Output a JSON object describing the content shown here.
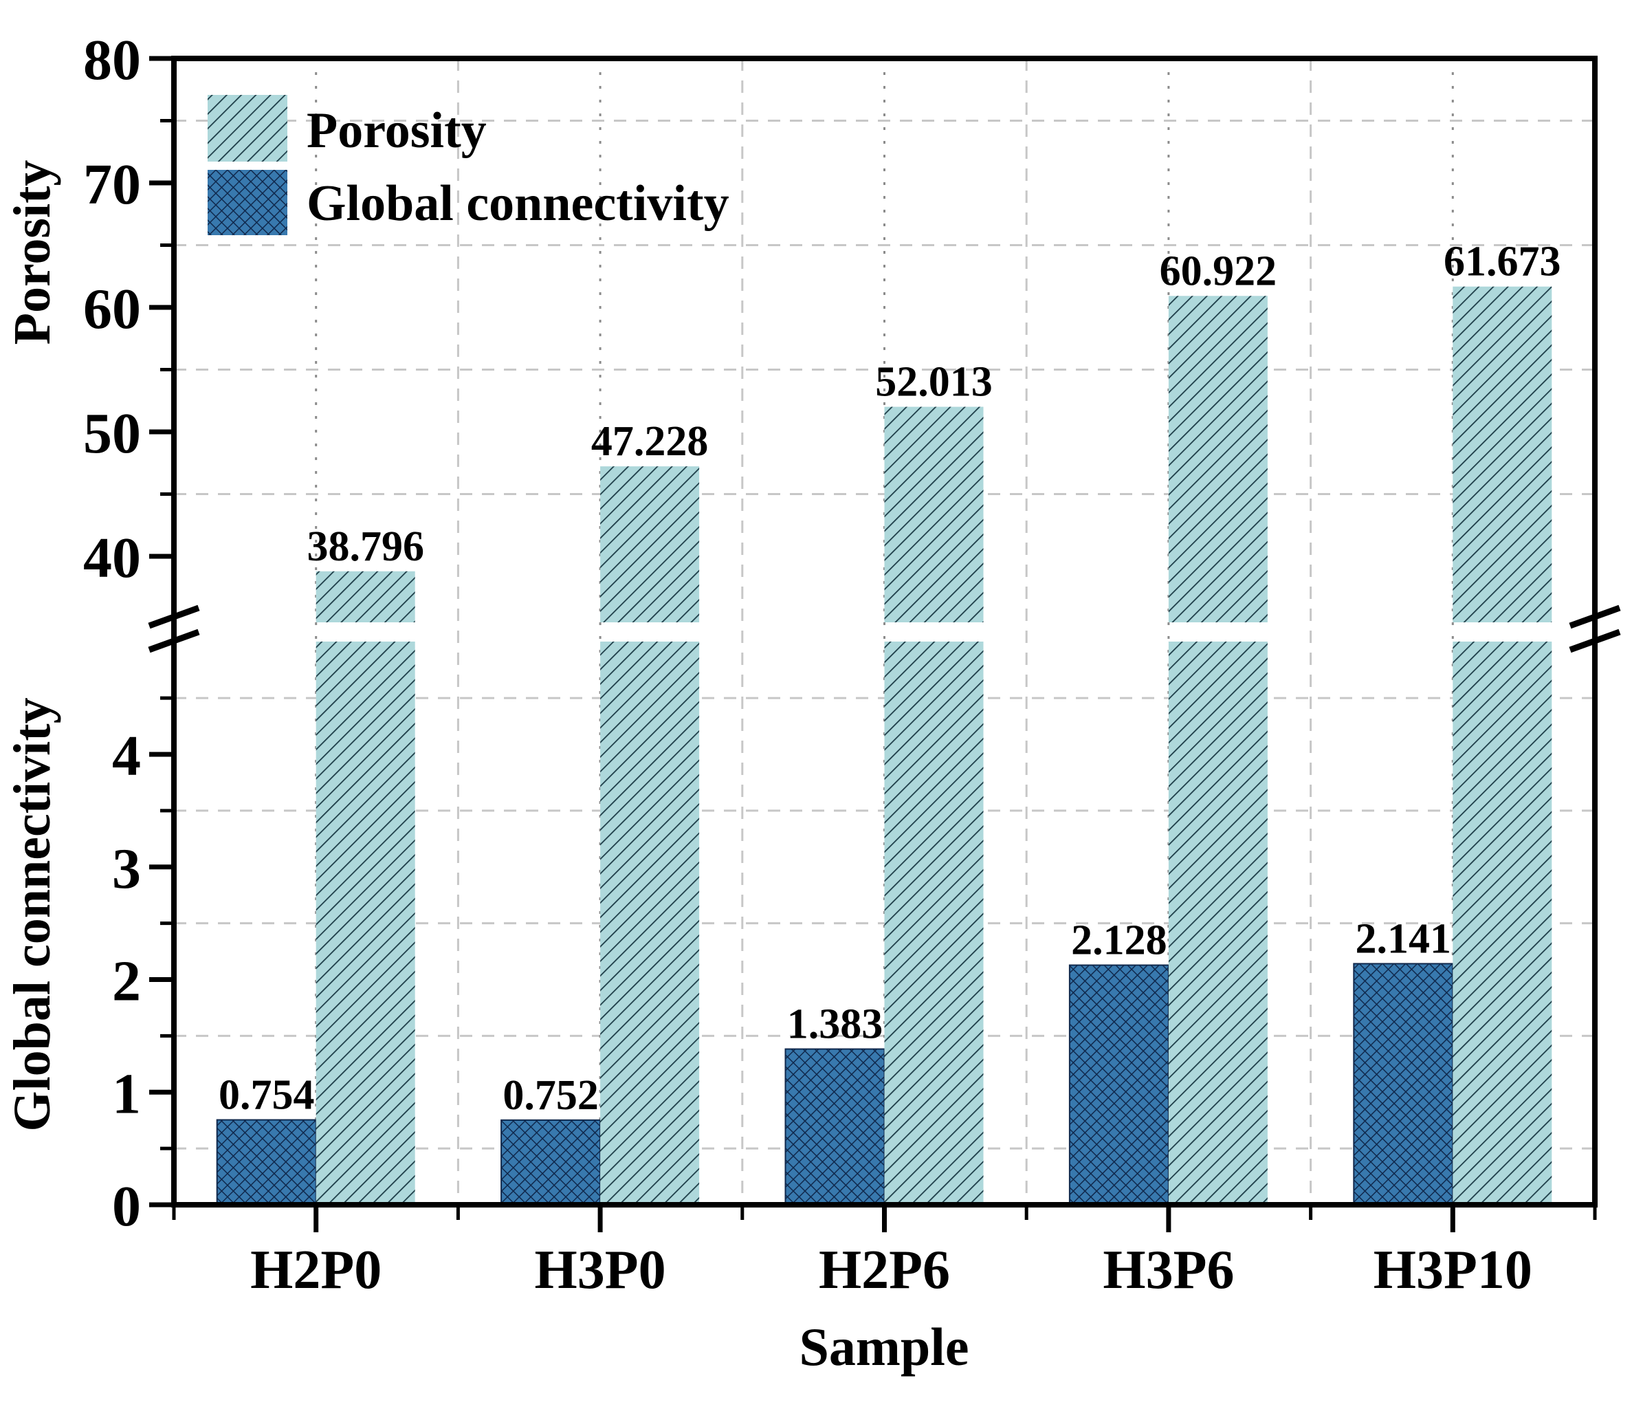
{
  "chart_data": {
    "type": "bar",
    "title": "",
    "categories": [
      "H2P0",
      "H3P0",
      "H2P6",
      "H3P6",
      "H3P10"
    ],
    "series": [
      {
        "name": "Porosity",
        "axis": "top",
        "values": [
          38.796,
          47.228,
          52.013,
          60.922,
          61.673
        ],
        "value_labels": [
          "38.796",
          "47.228",
          "52.013",
          "60.922",
          "61.673"
        ]
      },
      {
        "name": "Global connectivity",
        "axis": "bottom",
        "values": [
          0.754,
          0.752,
          1.383,
          2.128,
          2.141
        ],
        "value_labels": [
          "0.754",
          "0.752",
          "1.383",
          "2.128",
          "2.141"
        ]
      }
    ],
    "xlabel": "Sample",
    "ylabel_top": "Porosity",
    "ylabel_bottom": "Global connectivity",
    "broken_axis": true,
    "top_axis": {
      "min": 40,
      "max": 80,
      "major_ticks": [
        40,
        50,
        60,
        70,
        80
      ],
      "minor_ticks": [
        45,
        55,
        65,
        75
      ]
    },
    "bottom_axis": {
      "min": 0,
      "max": 4.8,
      "major_ticks": [
        0,
        1,
        2,
        3,
        4
      ],
      "minor_ticks": [
        0.5,
        1.5,
        2.5,
        3.5,
        4.5
      ]
    },
    "grid": {
      "horizontal": "dashed at minor ticks",
      "vertical_group_centers": "dotted",
      "vertical_group_boundaries": "dashed"
    },
    "legend": {
      "position": "top-left",
      "entries": [
        "Porosity",
        "Global connectivity"
      ]
    }
  },
  "colors": {
    "background": "#ffffff",
    "porosity_fill": "#aed8db",
    "porosity_hatch": "#1d3d48",
    "connectivity_fill": "#3879ae",
    "connectivity_hatch": "#10294d",
    "axis": "#000000",
    "text": "#000000",
    "grid_dashed": "#c7c7c7",
    "grid_dotted": "#8c8c8c"
  }
}
